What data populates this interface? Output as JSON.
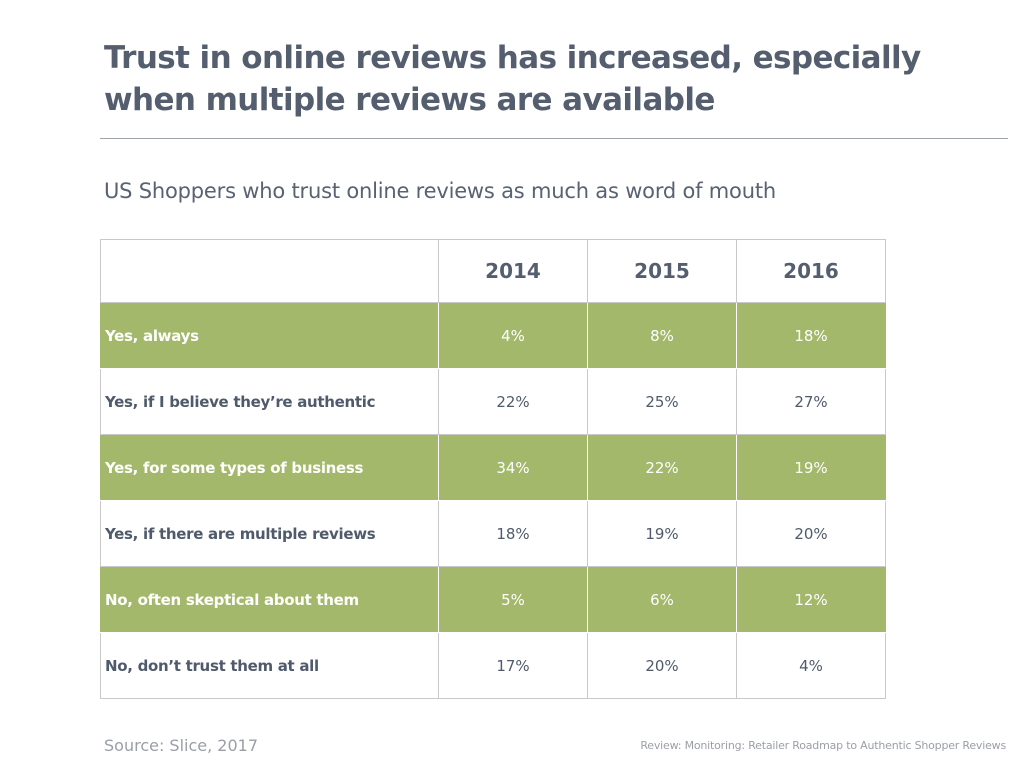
{
  "title": "Trust in online reviews has increased, especially when multiple reviews are available",
  "subtitle": "US Shoppers who trust online reviews as much as word of mouth",
  "source": "Source: Slice, 2017",
  "footer_ref": "Review: Monitoring: Retailer Roadmap to Authentic Shopper Reviews",
  "colors": {
    "band": "#a3b86a",
    "text": "#4f5a6b",
    "rule": "#9ea3aa"
  },
  "chart_data": {
    "type": "table",
    "title": "US Shoppers who trust online reviews as much as word of mouth",
    "columns": [
      "",
      "2014",
      "2015",
      "2016"
    ],
    "rows": [
      {
        "label": "Yes, always",
        "values": [
          "4%",
          "8%",
          "18%"
        ]
      },
      {
        "label": "Yes, if I believe they’re authentic",
        "values": [
          "22%",
          "25%",
          "27%"
        ]
      },
      {
        "label": "Yes, for some types of business",
        "values": [
          "34%",
          "22%",
          "19%"
        ]
      },
      {
        "label": "Yes, if there are multiple reviews",
        "values": [
          "18%",
          "19%",
          "20%"
        ]
      },
      {
        "label": "No, often skeptical about them",
        "values": [
          "5%",
          "6%",
          "12%"
        ]
      },
      {
        "label": "No, don’t trust them at all",
        "values": [
          "17%",
          "20%",
          "4%"
        ]
      }
    ]
  }
}
